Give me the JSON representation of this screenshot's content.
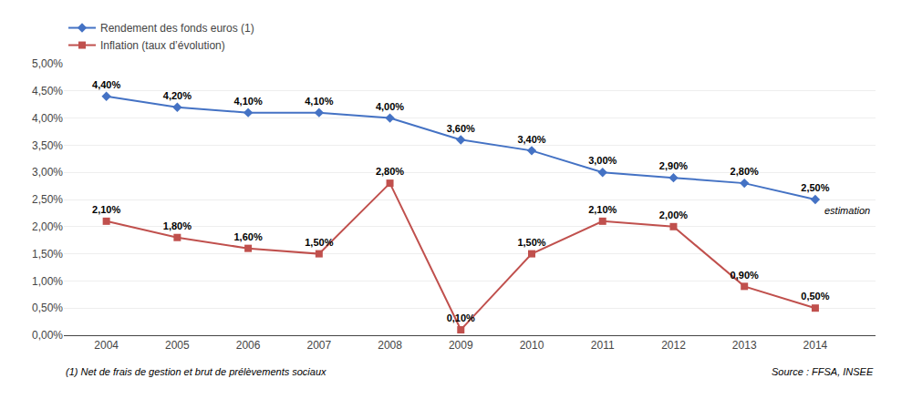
{
  "chart_data": {
    "type": "line",
    "x": [
      2004,
      2005,
      2006,
      2007,
      2008,
      2009,
      2010,
      2011,
      2012,
      2013,
      2014
    ],
    "xlim": [
      2003.4,
      2014.85
    ],
    "xticks": [
      2004,
      2005,
      2006,
      2007,
      2008,
      2009,
      2010,
      2011,
      2012,
      2013,
      2014
    ],
    "ylim": [
      0.0,
      5.0
    ],
    "yticks": [
      {
        "value": 0.0,
        "label": "0,00%"
      },
      {
        "value": 0.5,
        "label": "0,50%"
      },
      {
        "value": 1.0,
        "label": "1,00%"
      },
      {
        "value": 1.5,
        "label": "1,50%"
      },
      {
        "value": 2.0,
        "label": "2,00%"
      },
      {
        "value": 2.5,
        "label": "2,50%"
      },
      {
        "value": 3.0,
        "label": "3,00%"
      },
      {
        "value": 3.5,
        "label": "3,50%"
      },
      {
        "value": 4.0,
        "label": "4,00%"
      },
      {
        "value": 4.5,
        "label": "4,50%"
      },
      {
        "value": 5.0,
        "label": "5,00%"
      }
    ],
    "grid": true,
    "legend": "upper left",
    "data_labels": true,
    "series": [
      {
        "name": "Rendement des fonds euros (1)",
        "color": "#4472C4",
        "marker": "diamond",
        "values": [
          4.4,
          4.2,
          4.1,
          4.1,
          4.0,
          3.6,
          3.4,
          3.0,
          2.9,
          2.8,
          2.5
        ],
        "value_labels": [
          "4,40%",
          "4,20%",
          "4,10%",
          "4,10%",
          "4,00%",
          "3,60%",
          "3,40%",
          "3,00%",
          "2,90%",
          "2,80%",
          "2,50%"
        ]
      },
      {
        "name": "Inflation (taux d’évolution)",
        "color": "#C0504D",
        "marker": "square",
        "values": [
          2.1,
          1.8,
          1.6,
          1.5,
          2.8,
          0.1,
          1.5,
          2.1,
          2.0,
          0.9,
          0.5
        ],
        "value_labels": [
          "2,10%",
          "1,80%",
          "1,60%",
          "1,50%",
          "2,80%",
          "0,10%",
          "1,50%",
          "2,10%",
          "2,00%",
          "0,90%",
          "0,50%"
        ]
      }
    ],
    "annotations": [
      "estimation",
      "(1) Net de frais de gestion et brut de prélèvements sociaux",
      "Source : FFSA, INSEE"
    ]
  }
}
